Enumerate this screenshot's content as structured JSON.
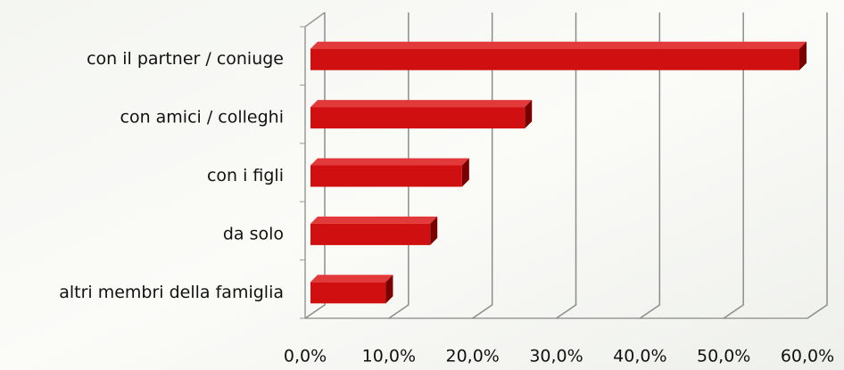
{
  "chart_data": {
    "type": "bar",
    "orientation": "horizontal",
    "three_d": true,
    "categories": [
      "con il partner / coniuge",
      "con amici / colleghi",
      "con i figli",
      "da solo",
      "altri membri della famiglia"
    ],
    "values": [
      58.4,
      25.6,
      18.1,
      14.3,
      9.0
    ],
    "color": "#d01010",
    "xlim": [
      0,
      60
    ],
    "xticks": [
      {
        "value": 0,
        "label": "0,0%"
      },
      {
        "value": 10,
        "label": "10,0%"
      },
      {
        "value": 20,
        "label": "20,0%"
      },
      {
        "value": 30,
        "label": "30,0%"
      },
      {
        "value": 40,
        "label": "40,0%"
      },
      {
        "value": 50,
        "label": "50,0%"
      },
      {
        "value": 60,
        "label": "60,0%"
      }
    ],
    "grid": true
  }
}
